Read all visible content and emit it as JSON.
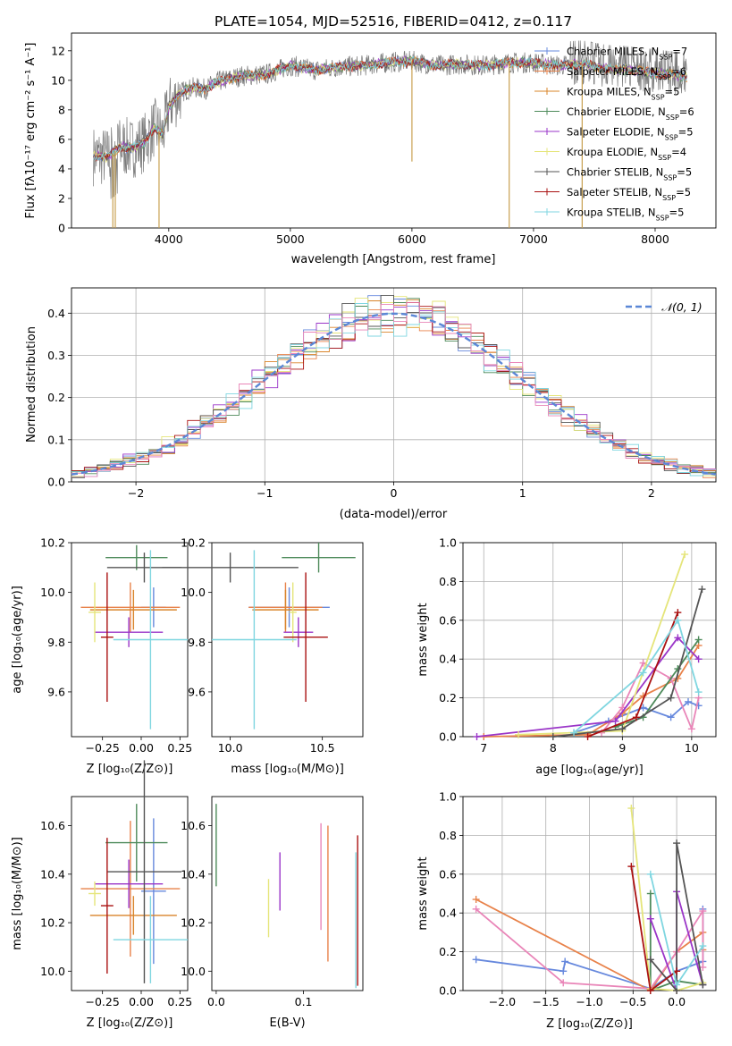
{
  "title": "PLATE=1054, MJD=52516, FIBERID=0412, z=0.117",
  "colors": {
    "chabrier_miles": "#6688dd",
    "salpeter_miles": "#e8824a",
    "kroupa_miles": "#d9842a",
    "chabrier_elodie": "#4d8a5a",
    "salpeter_elodie": "#9a35c8",
    "kroupa_elodie": "#e5e57a",
    "chabrier_stelib": "#555555",
    "salpeter_stelib": "#aa1111",
    "kroupa_stelib": "#7fd6e0",
    "pink": "#e985b8",
    "grid": "#b0b0b0"
  },
  "chart_data": [
    {
      "id": "spectrum",
      "type": "line",
      "xlabel": "wavelength [Angstrom, rest frame]",
      "ylabel": "Flux [f_λ10^-17 erg cm^-2 s^-1 A^-1]",
      "xlim": [
        3200,
        8500
      ],
      "ylim": [
        0,
        13.2
      ],
      "xticks": [
        4000,
        5000,
        6000,
        7000,
        8000
      ],
      "yticks": [
        0,
        2,
        4,
        6,
        8,
        10,
        12
      ],
      "grid": false,
      "legend_position": "right",
      "legend": [
        {
          "label": "Chabrier MILES, N",
          "sub": "SSP",
          "suffix": "=7",
          "color_key": "chabrier_miles"
        },
        {
          "label": "Salpeter MILES, N",
          "sub": "SSP",
          "suffix": "=6",
          "color_key": "salpeter_miles"
        },
        {
          "label": "Kroupa MILES, N",
          "sub": "SSP",
          "suffix": "=5",
          "color_key": "kroupa_miles"
        },
        {
          "label": "Chabrier ELODIE, N",
          "sub": "SSP",
          "suffix": "=6",
          "color_key": "chabrier_elodie"
        },
        {
          "label": "Salpeter ELODIE, N",
          "sub": "SSP",
          "suffix": "=5",
          "color_key": "salpeter_elodie"
        },
        {
          "label": "Kroupa ELODIE, N",
          "sub": "SSP",
          "suffix": "=4",
          "color_key": "kroupa_elodie"
        },
        {
          "label": "Chabrier STELIB, N",
          "sub": "SSP",
          "suffix": "=5",
          "color_key": "chabrier_stelib"
        },
        {
          "label": "Salpeter STELIB, N",
          "sub": "SSP",
          "suffix": "=5",
          "color_key": "salpeter_stelib"
        },
        {
          "label": "Kroupa STELIB, N",
          "sub": "SSP",
          "suffix": "=5",
          "color_key": "kroupa_stelib"
        }
      ],
      "continuum": [
        [
          3380,
          4.9
        ],
        [
          3500,
          4.8
        ],
        [
          3600,
          5.5
        ],
        [
          3700,
          5.4
        ],
        [
          3800,
          5.8
        ],
        [
          3880,
          6.8
        ],
        [
          3950,
          6.3
        ],
        [
          4000,
          8.2
        ],
        [
          4100,
          9.2
        ],
        [
          4200,
          9.5
        ],
        [
          4300,
          9.4
        ],
        [
          4400,
          9.9
        ],
        [
          4600,
          10.3
        ],
        [
          4800,
          10.4
        ],
        [
          5000,
          11.0
        ],
        [
          5200,
          10.7
        ],
        [
          5400,
          10.9
        ],
        [
          5600,
          11.0
        ],
        [
          5800,
          11.2
        ],
        [
          6000,
          11.3
        ],
        [
          6200,
          11.0
        ],
        [
          6400,
          11.1
        ],
        [
          6600,
          11.0
        ],
        [
          6800,
          11.2
        ],
        [
          7000,
          11.2
        ],
        [
          7200,
          11.0
        ],
        [
          7400,
          11.1
        ],
        [
          7600,
          10.8
        ],
        [
          7800,
          10.7
        ],
        [
          8000,
          10.5
        ],
        [
          8200,
          10.3
        ],
        [
          8250,
          10.2
        ]
      ],
      "drops": [
        [
          3540,
          0
        ],
        [
          3560,
          0
        ],
        [
          3920,
          0
        ],
        [
          6800,
          0
        ],
        [
          7400,
          0
        ],
        [
          6000,
          4.5
        ]
      ]
    },
    {
      "id": "residuals",
      "type": "bar",
      "xlabel": "(data-model)/error",
      "ylabel": "Normed distribution",
      "xlim": [
        -2.5,
        2.5
      ],
      "ylim": [
        0,
        0.46
      ],
      "xticks": [
        -2,
        -1,
        0,
        1,
        2
      ],
      "yticks": [
        0.0,
        0.1,
        0.2,
        0.3,
        0.4
      ],
      "grid": true,
      "legend_position": "top-right",
      "legend_label": "N(0,1)",
      "bin_width": 0.1,
      "sigma": 1.0
    },
    {
      "id": "age_vs_Z",
      "type": "scatter",
      "xlabel": "Z [log10(Z/Z⊙)]",
      "ylabel": "age [log10(age/yr)]",
      "xlim": [
        -0.45,
        0.3
      ],
      "ylim": [
        9.42,
        10.2
      ],
      "xticks": [
        -0.25,
        0.0,
        0.25
      ],
      "yticks": [
        9.6,
        9.8,
        10.0,
        10.2
      ],
      "points": [
        {
          "c": "chabrier_miles",
          "x": 0.08,
          "xe": 0.08,
          "y": 9.94,
          "ye": 0.08
        },
        {
          "c": "salpeter_miles",
          "x": -0.07,
          "xe": 0.32,
          "y": 9.94,
          "ye": 0.1
        },
        {
          "c": "kroupa_miles",
          "x": -0.05,
          "xe": 0.28,
          "y": 9.93,
          "ye": 0.08
        },
        {
          "c": "chabrier_elodie",
          "x": -0.03,
          "xe": 0.2,
          "y": 10.14,
          "ye": 0.05
        },
        {
          "c": "salpeter_elodie",
          "x": -0.08,
          "xe": 0.22,
          "y": 9.84,
          "ye": 0.06
        },
        {
          "c": "kroupa_elodie",
          "x": -0.3,
          "xe": 0.04,
          "y": 9.92,
          "ye": 0.12
        },
        {
          "c": "chabrier_stelib",
          "x": 0.02,
          "xe": 0.24,
          "y": 10.1,
          "ye": 0.06
        },
        {
          "c": "salpeter_stelib",
          "x": -0.22,
          "xe": 0.04,
          "y": 9.82,
          "ye": 0.26
        },
        {
          "c": "kroupa_stelib",
          "x": 0.06,
          "xe": 0.24,
          "y": 9.81,
          "ye": 0.36
        }
      ]
    },
    {
      "id": "age_vs_mass",
      "type": "scatter",
      "xlabel": "mass [log10(M/M⊙)]",
      "ylabel": "",
      "xlim": [
        9.9,
        10.72
      ],
      "ylim": [
        9.42,
        10.2
      ],
      "xticks": [
        10.0,
        10.5
      ],
      "yticks": [
        9.6,
        9.8,
        10.0,
        10.2
      ],
      "points": [
        {
          "c": "chabrier_miles",
          "x": 10.32,
          "xe": 0.22,
          "y": 9.94,
          "ye": 0.08
        },
        {
          "c": "salpeter_miles",
          "x": 10.3,
          "xe": 0.2,
          "y": 9.94,
          "ye": 0.1
        },
        {
          "c": "kroupa_miles",
          "x": 10.3,
          "xe": 0.18,
          "y": 9.93,
          "ye": 0.08
        },
        {
          "c": "chabrier_elodie",
          "x": 10.48,
          "xe": 0.2,
          "y": 10.14,
          "ye": 0.06
        },
        {
          "c": "salpeter_elodie",
          "x": 10.37,
          "xe": 0.08,
          "y": 9.84,
          "ye": 0.06
        },
        {
          "c": "kroupa_elodie",
          "x": 10.34,
          "xe": 0.02,
          "y": 9.92,
          "ye": 0.12
        },
        {
          "c": "chabrier_stelib",
          "x": 10.0,
          "xe": 0.37,
          "y": 10.1,
          "ye": 0.06
        },
        {
          "c": "salpeter_stelib",
          "x": 10.41,
          "xe": 0.12,
          "y": 9.82,
          "ye": 0.26
        },
        {
          "c": "kroupa_stelib",
          "x": 10.13,
          "xe": 0.23,
          "y": 9.81,
          "ye": 0.36
        }
      ]
    },
    {
      "id": "mass_weight_vs_age",
      "type": "line",
      "xlabel": "age [log10(age/yr)]",
      "ylabel": "mass weight",
      "xlim": [
        6.7,
        10.35
      ],
      "ylim": [
        0,
        1.0
      ],
      "xticks": [
        7,
        8,
        9,
        10
      ],
      "yticks": [
        0.0,
        0.2,
        0.4,
        0.6,
        0.8,
        1.0
      ],
      "grid": true,
      "series": [
        {
          "c": "chabrier_miles",
          "x": [
            8.3,
            8.8,
            9.3,
            9.7,
            9.95,
            10.1
          ],
          "values": [
            0.02,
            0.08,
            0.15,
            0.1,
            0.18,
            0.16
          ]
        },
        {
          "c": "salpeter_miles",
          "x": [
            7.0,
            8.5,
            9.0,
            9.3,
            9.8,
            10.1
          ],
          "values": [
            0.0,
            0.01,
            0.12,
            0.21,
            0.3,
            0.47
          ]
        },
        {
          "c": "pink",
          "x": [
            8.7,
            9.0,
            9.3,
            9.7,
            10.0,
            10.1
          ],
          "values": [
            0.02,
            0.15,
            0.38,
            0.3,
            0.04,
            0.2
          ]
        },
        {
          "c": "chabrier_elodie",
          "x": [
            8.9,
            9.3,
            9.8,
            10.1
          ],
          "values": [
            0.05,
            0.1,
            0.35,
            0.5
          ]
        },
        {
          "c": "salpeter_elodie",
          "x": [
            6.9,
            8.9,
            9.8,
            10.1
          ],
          "values": [
            0.0,
            0.08,
            0.51,
            0.4
          ]
        },
        {
          "c": "kroupa_elodie",
          "x": [
            7.5,
            9.0,
            9.9
          ],
          "values": [
            0.01,
            0.03,
            0.94
          ]
        },
        {
          "c": "chabrier_stelib",
          "x": [
            8.0,
            9.0,
            9.7,
            10.15
          ],
          "values": [
            0.0,
            0.04,
            0.2,
            0.76
          ]
        },
        {
          "c": "salpeter_stelib",
          "x": [
            8.5,
            9.2,
            9.8
          ],
          "values": [
            0.0,
            0.1,
            0.64
          ]
        },
        {
          "c": "kroupa_stelib",
          "x": [
            8.3,
            9.3,
            9.8,
            10.1
          ],
          "values": [
            0.02,
            0.33,
            0.6,
            0.23
          ]
        }
      ]
    },
    {
      "id": "mass_vs_Z",
      "type": "scatter",
      "xlabel": "Z [log10(Z/Z⊙)]",
      "ylabel": "mass [log10(M/M⊙)]",
      "xlim": [
        -0.45,
        0.3
      ],
      "ylim": [
        9.92,
        10.72
      ],
      "xticks": [
        -0.25,
        0.0,
        0.25
      ],
      "yticks": [
        10.0,
        10.2,
        10.4,
        10.6
      ],
      "points": [
        {
          "c": "chabrier_miles",
          "x": 0.08,
          "xe": 0.08,
          "y": 10.33,
          "ye": 0.3
        },
        {
          "c": "salpeter_miles",
          "x": -0.07,
          "xe": 0.32,
          "y": 10.34,
          "ye": 0.28
        },
        {
          "c": "kroupa_miles",
          "x": -0.05,
          "xe": 0.28,
          "y": 10.23,
          "ye": 0.08
        },
        {
          "c": "chabrier_elodie",
          "x": -0.03,
          "xe": 0.2,
          "y": 10.53,
          "ye": 0.16
        },
        {
          "c": "salpeter_elodie",
          "x": -0.08,
          "xe": 0.22,
          "y": 10.36,
          "ye": 0.1
        },
        {
          "c": "kroupa_elodie",
          "x": -0.3,
          "xe": 0.04,
          "y": 10.32,
          "ye": 0.05
        },
        {
          "c": "chabrier_stelib",
          "x": 0.02,
          "xe": 0.24,
          "y": 10.41,
          "ye": 0.46
        },
        {
          "c": "salpeter_stelib",
          "x": -0.22,
          "xe": 0.04,
          "y": 10.27,
          "ye": 0.28
        },
        {
          "c": "kroupa_stelib",
          "x": 0.06,
          "xe": 0.24,
          "y": 10.13,
          "ye": 0.18
        }
      ]
    },
    {
      "id": "mass_vs_EBV",
      "type": "scatter",
      "xlabel": "E(B-V)",
      "ylabel": "",
      "xlim": [
        -0.005,
        0.168
      ],
      "ylim": [
        9.92,
        10.72
      ],
      "xticks": [
        0.0,
        0.1
      ],
      "yticks": [
        10.0,
        10.2,
        10.4,
        10.6
      ],
      "points": [
        {
          "c": "chabrier_elodie",
          "x": 0.0,
          "y": 10.52,
          "ye": 0.17
        },
        {
          "c": "kroupa_elodie",
          "x": 0.06,
          "y": 10.26,
          "ye": 0.12
        },
        {
          "c": "salpeter_elodie",
          "x": 0.073,
          "y": 10.37,
          "ye": 0.12
        },
        {
          "c": "pink",
          "x": 0.12,
          "y": 10.39,
          "ye": 0.22
        },
        {
          "c": "salpeter_miles",
          "x": 0.128,
          "y": 10.32,
          "ye": 0.28
        },
        {
          "c": "salpeter_stelib",
          "x": 0.162,
          "y": 10.25,
          "ye": 0.31
        },
        {
          "c": "kroupa_stelib",
          "x": 0.16,
          "y": 10.21,
          "ye": 0.28
        }
      ]
    },
    {
      "id": "mass_weight_vs_Z",
      "type": "line",
      "xlabel": "Z [log10(Z/Z⊙)]",
      "ylabel": "mass weight",
      "xlim": [
        -2.45,
        0.45
      ],
      "ylim": [
        0,
        1.0
      ],
      "xticks": [
        -2.0,
        -1.5,
        -1.0,
        -0.5,
        0.0
      ],
      "yticks": [
        0.0,
        0.2,
        0.4,
        0.6,
        0.8,
        1.0
      ],
      "grid": true,
      "series": [
        {
          "c": "chabrier_miles",
          "x": [
            -2.3,
            -1.3,
            -1.28,
            -0.3,
            0.0,
            0.3,
            0.3
          ],
          "values": [
            0.16,
            0.1,
            0.15,
            0.01,
            0.1,
            0.15,
            0.42
          ]
        },
        {
          "c": "salpeter_miles",
          "x": [
            -2.3,
            -0.3,
            0.0,
            0.3,
            0.3
          ],
          "values": [
            0.47,
            0.0,
            0.2,
            0.3,
            0.21
          ]
        },
        {
          "c": "pink",
          "x": [
            -2.3,
            -1.3,
            -0.3,
            0.0,
            0.3,
            0.3
          ],
          "values": [
            0.42,
            0.04,
            0.01,
            0.2,
            0.41,
            0.12
          ]
        },
        {
          "c": "chabrier_elodie",
          "x": [
            -0.3,
            -0.3,
            0.0,
            0.3
          ],
          "values": [
            0.5,
            0.0,
            0.05,
            0.03
          ]
        },
        {
          "c": "salpeter_elodie",
          "x": [
            -0.3,
            0.0,
            0.0,
            0.3
          ],
          "values": [
            0.37,
            0.0,
            0.51,
            0.03
          ]
        },
        {
          "c": "kroupa_elodie",
          "x": [
            -0.52,
            -0.3,
            0.0,
            0.3
          ],
          "values": [
            0.94,
            0.01,
            0.0,
            0.04
          ]
        },
        {
          "c": "chabrier_stelib",
          "x": [
            -0.3,
            0.0,
            0.0,
            0.3
          ],
          "values": [
            0.16,
            0.0,
            0.76,
            0.03
          ]
        },
        {
          "c": "salpeter_stelib",
          "x": [
            -0.52,
            -0.3,
            0.0
          ],
          "values": [
            0.64,
            0.0,
            0.1
          ]
        },
        {
          "c": "kroupa_stelib",
          "x": [
            -0.3,
            0.0,
            0.3
          ],
          "values": [
            0.6,
            0.03,
            0.23
          ]
        }
      ]
    }
  ]
}
